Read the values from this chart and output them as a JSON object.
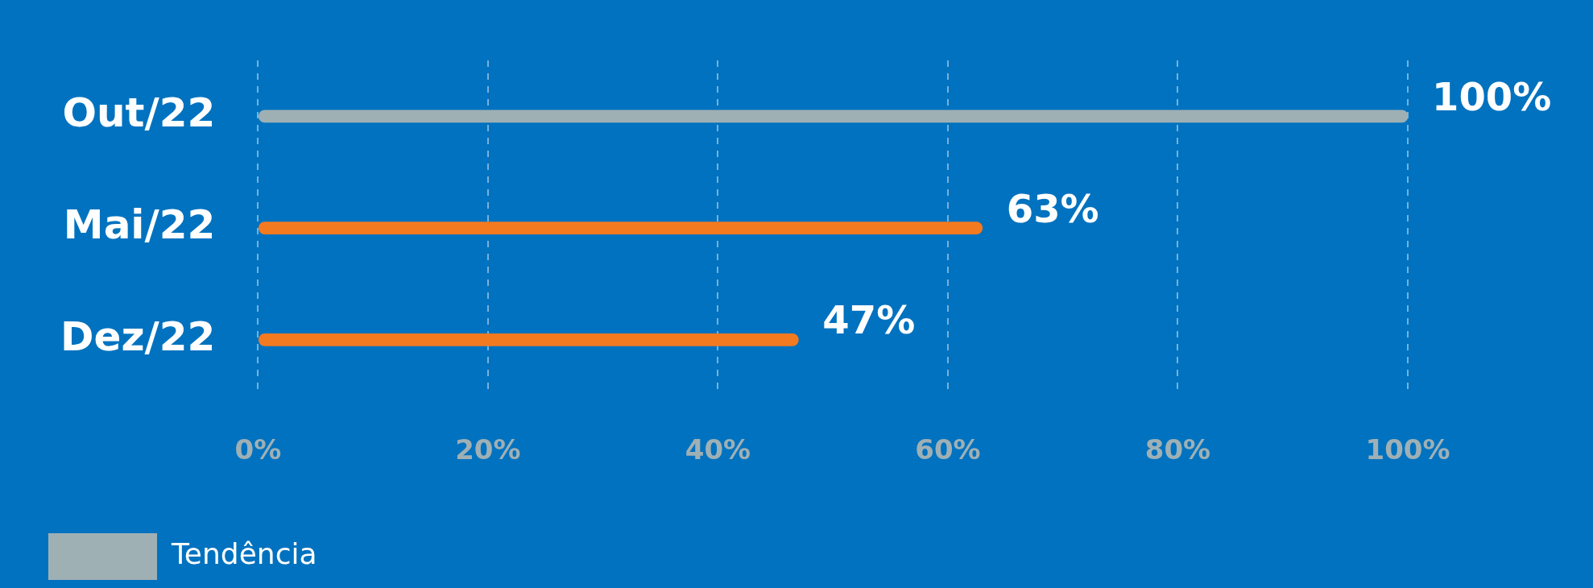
{
  "chart_data": {
    "type": "bar",
    "orientation": "horizontal",
    "categories": [
      "Out/22",
      "Mai/22",
      "Dez/22"
    ],
    "series": [
      {
        "name": "Tendência",
        "color": "#9fb0b5",
        "values": [
          100,
          null,
          null
        ]
      },
      {
        "color": "#f47a20",
        "values": [
          null,
          63,
          47
        ]
      }
    ],
    "xlim": [
      0,
      100
    ],
    "xticks": [
      {
        "value": 0,
        "label": "0%"
      },
      {
        "value": 20,
        "label": "20%"
      },
      {
        "value": 40,
        "label": "40%"
      },
      {
        "value": 60,
        "label": "60%"
      },
      {
        "value": 80,
        "label": "80%"
      },
      {
        "value": 100,
        "label": "100%"
      }
    ],
    "value_labels": [
      [
        "100%",
        null,
        null
      ],
      [
        null,
        "63%",
        "47%"
      ]
    ],
    "grid": "x",
    "legend": "bottom left"
  }
}
